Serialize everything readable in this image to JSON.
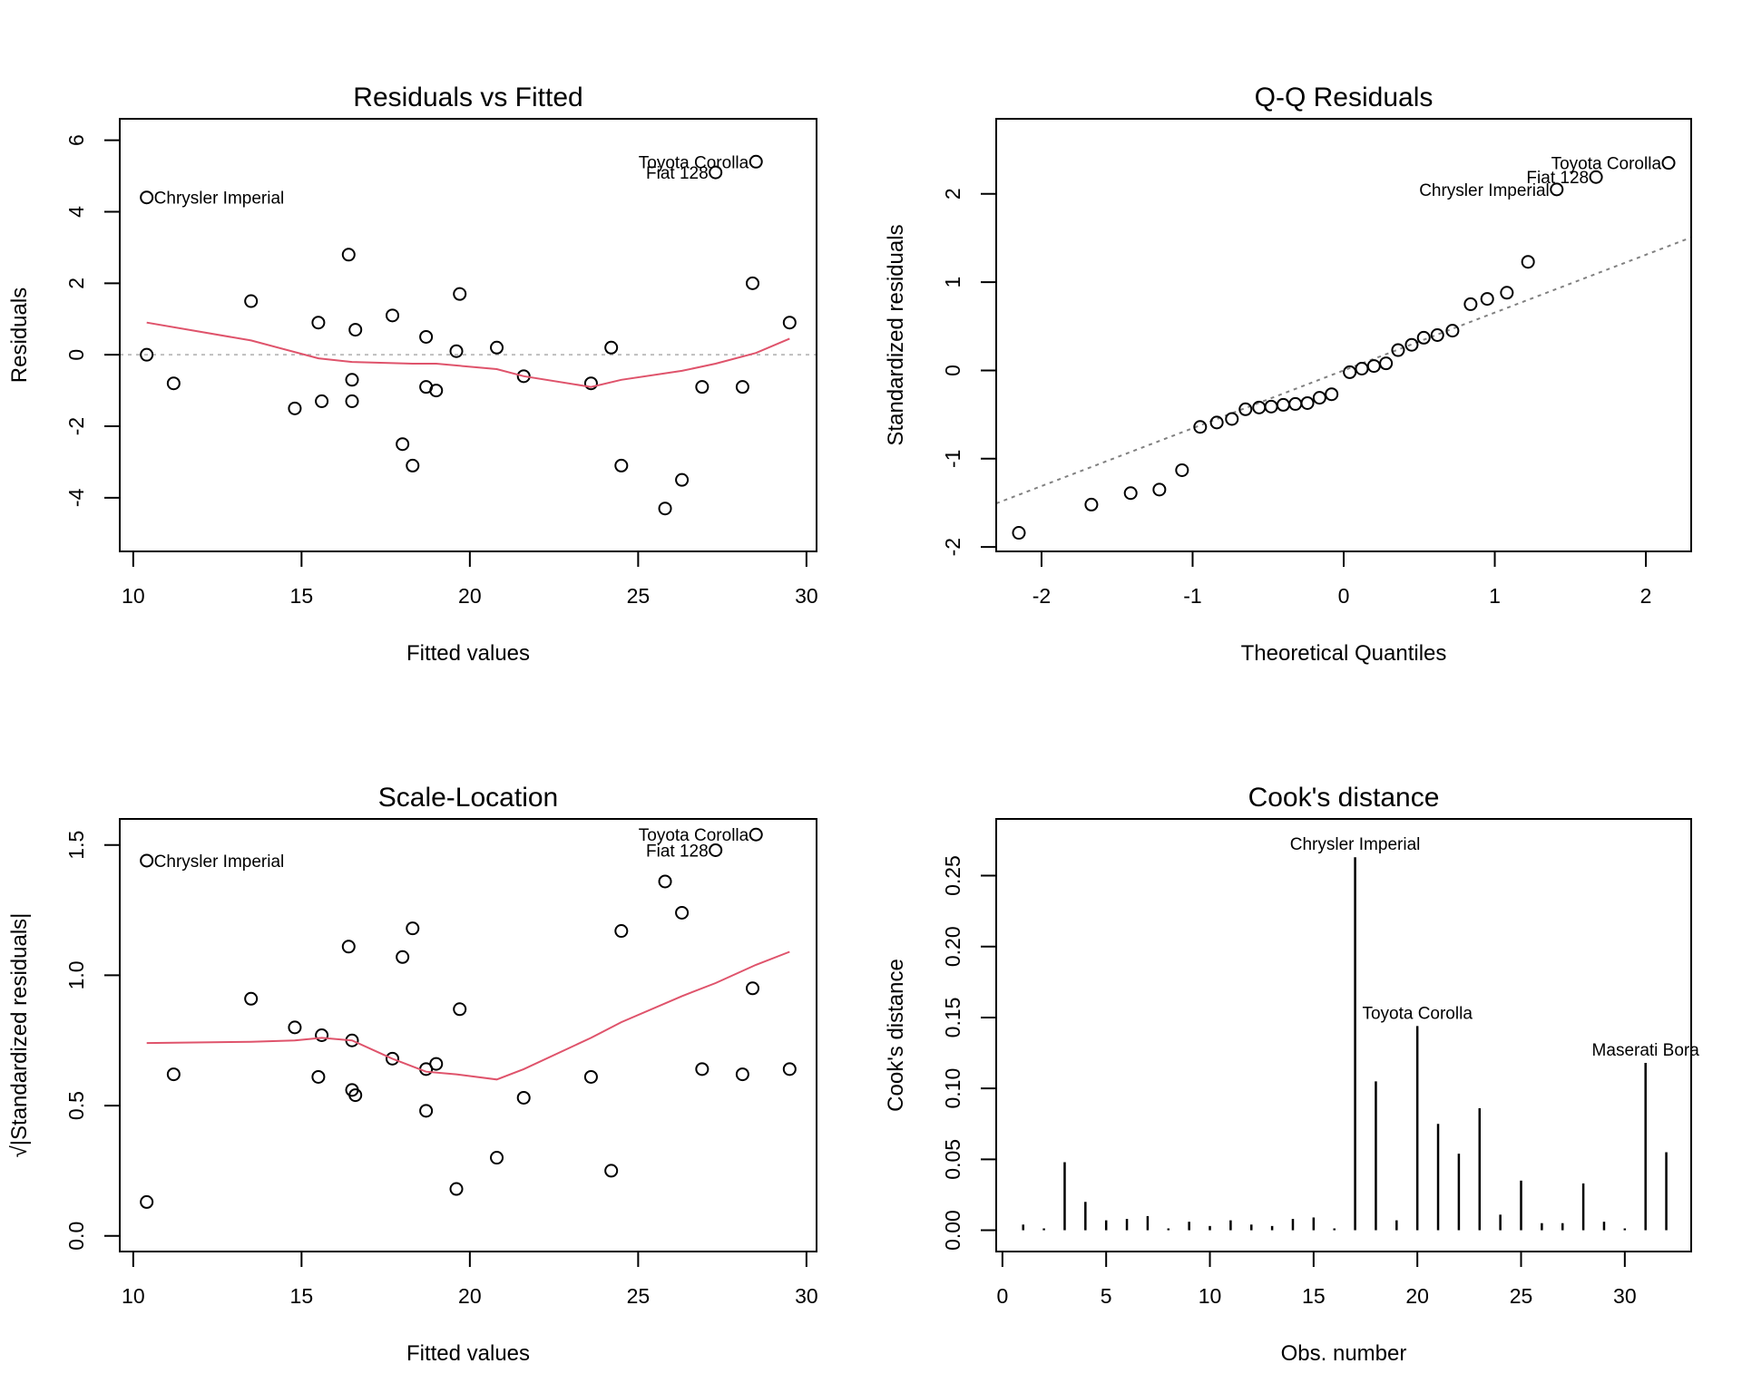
{
  "figure": {
    "description": "R lm diagnostic plots (2x2)"
  },
  "chart_data": [
    {
      "id": "resid_fitted",
      "type": "scatter",
      "title": "Residuals vs Fitted",
      "xlabel": "Fitted values",
      "ylabel": "Residuals",
      "xlim": [
        9.6,
        30.3
      ],
      "ylim": [
        -5.5,
        6.6
      ],
      "xticks": [
        10,
        15,
        20,
        25,
        30
      ],
      "yticks": [
        -4,
        -2,
        0,
        2,
        4,
        6
      ],
      "reference_line": {
        "y": 0,
        "style": "dotted",
        "color": "#bebebe"
      },
      "smooth_color": "#df536b",
      "points": [
        [
          10.4,
          4.4
        ],
        [
          10.4,
          0.0
        ],
        [
          11.2,
          -0.8
        ],
        [
          13.5,
          1.5
        ],
        [
          14.8,
          -1.5
        ],
        [
          15.5,
          0.9
        ],
        [
          15.6,
          -1.3
        ],
        [
          16.4,
          2.8
        ],
        [
          16.5,
          -0.7
        ],
        [
          16.5,
          -1.3
        ],
        [
          16.6,
          0.7
        ],
        [
          17.7,
          1.1
        ],
        [
          18.0,
          -2.5
        ],
        [
          18.3,
          -3.1
        ],
        [
          18.7,
          0.5
        ],
        [
          18.7,
          -0.9
        ],
        [
          19.0,
          -1.0
        ],
        [
          19.6,
          0.1
        ],
        [
          19.7,
          1.7
        ],
        [
          20.8,
          0.2
        ],
        [
          21.6,
          -0.6
        ],
        [
          23.6,
          -0.8
        ],
        [
          24.2,
          0.2
        ],
        [
          24.5,
          -3.1
        ],
        [
          25.8,
          -4.3
        ],
        [
          26.3,
          -3.5
        ],
        [
          26.9,
          -0.9
        ],
        [
          27.3,
          5.1
        ],
        [
          28.1,
          -0.9
        ],
        [
          28.4,
          2.0
        ],
        [
          28.5,
          5.4
        ],
        [
          29.5,
          0.9
        ]
      ],
      "smooth": [
        [
          10.4,
          0.9
        ],
        [
          13.5,
          0.4
        ],
        [
          15.5,
          -0.1
        ],
        [
          16.5,
          -0.2
        ],
        [
          18.3,
          -0.25
        ],
        [
          19.0,
          -0.25
        ],
        [
          20.8,
          -0.4
        ],
        [
          21.6,
          -0.6
        ],
        [
          23.6,
          -0.9
        ],
        [
          24.5,
          -0.7
        ],
        [
          26.3,
          -0.45
        ],
        [
          27.3,
          -0.25
        ],
        [
          28.5,
          0.05
        ],
        [
          29.5,
          0.45
        ]
      ],
      "labels": [
        {
          "text": "Chrysler Imperial",
          "x": 10.4,
          "y": 4.4,
          "side": "right"
        },
        {
          "text": "Toyota Corolla",
          "x": 28.5,
          "y": 5.4,
          "side": "left"
        },
        {
          "text": "Fiat 128",
          "x": 27.3,
          "y": 5.1,
          "side": "left"
        }
      ]
    },
    {
      "id": "qq",
      "type": "scatter",
      "title": "Q-Q Residuals",
      "xlabel": "Theoretical Quantiles",
      "ylabel": "Standardized residuals",
      "xlim": [
        -2.3,
        2.3
      ],
      "ylim": [
        -2.05,
        2.85
      ],
      "xticks": [
        -2,
        -1,
        0,
        1,
        2
      ],
      "yticks": [
        -2,
        -1,
        0,
        1,
        2
      ],
      "qq_line": {
        "slope": 0.655,
        "intercept": 0.0,
        "style": "dotted",
        "color": "#808080"
      },
      "points": [
        [
          -2.15,
          -1.84
        ],
        [
          -1.67,
          -1.52
        ],
        [
          -1.41,
          -1.39
        ],
        [
          -1.22,
          -1.35
        ],
        [
          -1.07,
          -1.13
        ],
        [
          -0.95,
          -0.64
        ],
        [
          -0.84,
          -0.59
        ],
        [
          -0.74,
          -0.55
        ],
        [
          -0.65,
          -0.44
        ],
        [
          -0.56,
          -0.42
        ],
        [
          -0.48,
          -0.41
        ],
        [
          -0.4,
          -0.39
        ],
        [
          -0.32,
          -0.38
        ],
        [
          -0.24,
          -0.37
        ],
        [
          -0.16,
          -0.31
        ],
        [
          -0.08,
          -0.27
        ],
        [
          0.04,
          -0.02
        ],
        [
          0.12,
          0.02
        ],
        [
          0.2,
          0.05
        ],
        [
          0.28,
          0.08
        ],
        [
          0.36,
          0.23
        ],
        [
          0.45,
          0.29
        ],
        [
          0.53,
          0.37
        ],
        [
          0.62,
          0.4
        ],
        [
          0.72,
          0.45
        ],
        [
          0.84,
          0.75
        ],
        [
          0.95,
          0.81
        ],
        [
          1.08,
          0.88
        ],
        [
          1.22,
          1.23
        ],
        [
          1.41,
          2.05
        ],
        [
          1.67,
          2.19
        ],
        [
          2.15,
          2.35
        ]
      ],
      "labels": [
        {
          "text": "Toyota Corolla",
          "x": 2.15,
          "y": 2.35,
          "side": "left"
        },
        {
          "text": "Fiat 128",
          "x": 1.67,
          "y": 2.19,
          "side": "left"
        },
        {
          "text": "Chrysler Imperial",
          "x": 1.41,
          "y": 2.05,
          "side": "left"
        }
      ]
    },
    {
      "id": "scale_location",
      "type": "scatter",
      "title": "Scale-Location",
      "xlabel": "Fitted values",
      "ylabel": "√|Standardized residuals|",
      "xlim": [
        9.6,
        30.3
      ],
      "ylim": [
        -0.06,
        1.6
      ],
      "xticks": [
        10,
        15,
        20,
        25,
        30
      ],
      "yticks": [
        0.0,
        0.5,
        1.0,
        1.5
      ],
      "ytick_labels": [
        "0.0",
        "0.5",
        "1.0",
        "1.5"
      ],
      "smooth_color": "#df536b",
      "points": [
        [
          10.4,
          1.44
        ],
        [
          10.4,
          0.13
        ],
        [
          11.2,
          0.62
        ],
        [
          13.5,
          0.91
        ],
        [
          14.8,
          0.8
        ],
        [
          15.5,
          0.61
        ],
        [
          15.6,
          0.77
        ],
        [
          16.4,
          1.11
        ],
        [
          16.5,
          0.75
        ],
        [
          16.5,
          0.56
        ],
        [
          16.6,
          0.54
        ],
        [
          17.7,
          0.68
        ],
        [
          18.0,
          1.07
        ],
        [
          18.3,
          1.18
        ],
        [
          18.7,
          0.48
        ],
        [
          18.7,
          0.64
        ],
        [
          19.0,
          0.66
        ],
        [
          19.6,
          0.18
        ],
        [
          19.7,
          0.87
        ],
        [
          20.8,
          0.3
        ],
        [
          21.6,
          0.53
        ],
        [
          23.6,
          0.61
        ],
        [
          24.2,
          0.25
        ],
        [
          24.5,
          1.17
        ],
        [
          25.8,
          1.36
        ],
        [
          26.3,
          1.24
        ],
        [
          26.9,
          0.64
        ],
        [
          27.3,
          1.48
        ],
        [
          28.1,
          0.62
        ],
        [
          28.4,
          0.95
        ],
        [
          28.5,
          1.54
        ],
        [
          29.5,
          0.64
        ]
      ],
      "smooth": [
        [
          10.4,
          0.74
        ],
        [
          13.5,
          0.745
        ],
        [
          14.8,
          0.75
        ],
        [
          15.6,
          0.76
        ],
        [
          16.5,
          0.75
        ],
        [
          17.7,
          0.68
        ],
        [
          18.7,
          0.63
        ],
        [
          19.6,
          0.62
        ],
        [
          20.8,
          0.6
        ],
        [
          21.6,
          0.64
        ],
        [
          23.6,
          0.76
        ],
        [
          24.5,
          0.82
        ],
        [
          26.3,
          0.92
        ],
        [
          27.3,
          0.97
        ],
        [
          28.5,
          1.04
        ],
        [
          29.5,
          1.09
        ]
      ],
      "labels": [
        {
          "text": "Chrysler Imperial",
          "x": 10.4,
          "y": 1.44,
          "side": "right"
        },
        {
          "text": "Toyota Corolla",
          "x": 28.5,
          "y": 1.54,
          "side": "left"
        },
        {
          "text": "Fiat 128",
          "x": 27.3,
          "y": 1.48,
          "side": "left"
        }
      ]
    },
    {
      "id": "cooks",
      "type": "bar",
      "title": "Cook's distance",
      "xlabel": "Obs. number",
      "ylabel": "Cook's distance",
      "xlim": [
        -0.3,
        33.2
      ],
      "ylim": [
        -0.015,
        0.29
      ],
      "xticks": [
        0,
        5,
        10,
        15,
        20,
        25,
        30
      ],
      "yticks": [
        0.0,
        0.05,
        0.1,
        0.15,
        0.2,
        0.25
      ],
      "ytick_labels": [
        "0.00",
        "0.05",
        "0.10",
        "0.15",
        "0.20",
        "0.25"
      ],
      "x": [
        1,
        2,
        3,
        4,
        5,
        6,
        7,
        8,
        9,
        10,
        11,
        12,
        13,
        14,
        15,
        16,
        17,
        18,
        19,
        20,
        21,
        22,
        23,
        24,
        25,
        26,
        27,
        28,
        29,
        30,
        31,
        32
      ],
      "values": [
        0.004,
        0.001,
        0.048,
        0.02,
        0.007,
        0.008,
        0.01,
        0.001,
        0.006,
        0.003,
        0.007,
        0.004,
        0.003,
        0.008,
        0.009,
        0.001,
        0.263,
        0.105,
        0.007,
        0.144,
        0.075,
        0.054,
        0.086,
        0.011,
        0.035,
        0.005,
        0.005,
        0.033,
        0.006,
        0.001,
        0.118,
        0.055
      ],
      "labels": [
        {
          "text": "Chrysler Imperial",
          "obs": 17
        },
        {
          "text": "Toyota Corolla",
          "obs": 20
        },
        {
          "text": "Maserati Bora",
          "obs": 31
        }
      ]
    }
  ]
}
